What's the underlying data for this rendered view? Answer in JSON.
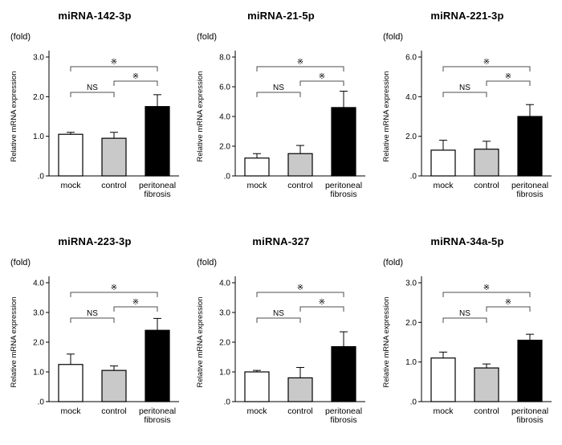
{
  "figure": {
    "type": "multi-panel bar figure",
    "panel_count": 6,
    "colors": {
      "mock_bar": "#ffffff",
      "control_bar": "#c9c9c9",
      "fibrosis_bar": "#000000",
      "bar_border": "#000000",
      "bracket_line": "#4d4d4d",
      "sig_label": "#333333"
    }
  },
  "chart_data": [
    {
      "type": "bar",
      "title": "miRNA-142-3p",
      "unit_label": "(fold)",
      "ylabel": "Relative mRNA expression",
      "categories": [
        "mock",
        "control",
        "peritoneal\nfibrosis"
      ],
      "category_keys": [
        "mock",
        "control",
        "peritoneal-fibrosis"
      ],
      "values": [
        1.05,
        0.95,
        1.75
      ],
      "errors": [
        0.05,
        0.15,
        0.3
      ],
      "ymax": 3.0,
      "yticks": [
        0,
        1,
        2,
        3
      ],
      "ytick_labels": [
        ".0",
        "1.0",
        "2.0",
        "3.0"
      ],
      "bar_colors": [
        "#ffffff",
        "#c9c9c9",
        "#000000"
      ],
      "significance": {
        "mock_vs_fibrosis": "※",
        "mock_vs_control": "NS",
        "control_vs_fibrosis": "※"
      }
    },
    {
      "type": "bar",
      "title": "miRNA-21-5p",
      "unit_label": "(fold)",
      "ylabel": "Relative mRNA expression",
      "categories": [
        "mock",
        "control",
        "peritoneal\nfibrosis"
      ],
      "category_keys": [
        "mock",
        "control",
        "peritoneal-fibrosis"
      ],
      "values": [
        1.2,
        1.5,
        4.6
      ],
      "errors": [
        0.3,
        0.55,
        1.1
      ],
      "ymax": 8.0,
      "yticks": [
        0,
        2,
        4,
        6,
        8
      ],
      "ytick_labels": [
        ".0",
        "2.0",
        "4.0",
        "6.0",
        "8.0"
      ],
      "bar_colors": [
        "#ffffff",
        "#c9c9c9",
        "#000000"
      ],
      "significance": {
        "mock_vs_fibrosis": "※",
        "mock_vs_control": "NS",
        "control_vs_fibrosis": "※"
      }
    },
    {
      "type": "bar",
      "title": "miRNA-221-3p",
      "unit_label": "(fold)",
      "ylabel": "Relative mRNA expression",
      "categories": [
        "mock",
        "control",
        "peritoneal\nfibrosis"
      ],
      "category_keys": [
        "mock",
        "control",
        "peritoneal-fibrosis"
      ],
      "values": [
        1.3,
        1.35,
        3.0
      ],
      "errors": [
        0.5,
        0.4,
        0.6
      ],
      "ymax": 6.0,
      "yticks": [
        0,
        2,
        4,
        6
      ],
      "ytick_labels": [
        ".0",
        "2.0",
        "4.0",
        "6.0"
      ],
      "bar_colors": [
        "#ffffff",
        "#c9c9c9",
        "#000000"
      ],
      "significance": {
        "mock_vs_fibrosis": "※",
        "mock_vs_control": "NS",
        "control_vs_fibrosis": "※"
      }
    },
    {
      "type": "bar",
      "title": "miRNA-223-3p",
      "unit_label": "(fold)",
      "ylabel": "Relative mRNA expression",
      "categories": [
        "mock",
        "control",
        "peritoneal\nfibrosis"
      ],
      "category_keys": [
        "mock",
        "control",
        "peritoneal-fibrosis"
      ],
      "values": [
        1.25,
        1.05,
        2.4
      ],
      "errors": [
        0.35,
        0.15,
        0.4
      ],
      "ymax": 4.0,
      "yticks": [
        0,
        1,
        2,
        3,
        4
      ],
      "ytick_labels": [
        ".0",
        "1.0",
        "2.0",
        "3.0",
        "4.0"
      ],
      "bar_colors": [
        "#ffffff",
        "#c9c9c9",
        "#000000"
      ],
      "significance": {
        "mock_vs_fibrosis": "※",
        "mock_vs_control": "NS",
        "control_vs_fibrosis": "※"
      }
    },
    {
      "type": "bar",
      "title": "miRNA-327",
      "unit_label": "(fold)",
      "ylabel": "Relative mRNA expression",
      "categories": [
        "mock",
        "control",
        "peritoneal\nfibrosis"
      ],
      "category_keys": [
        "mock",
        "control",
        "peritoneal-fibrosis"
      ],
      "values": [
        1.0,
        0.8,
        1.85
      ],
      "errors": [
        0.05,
        0.35,
        0.5
      ],
      "ymax": 4.0,
      "yticks": [
        0,
        1,
        2,
        3,
        4
      ],
      "ytick_labels": [
        ".0",
        "1.0",
        "2.0",
        "3.0",
        "4.0"
      ],
      "bar_colors": [
        "#ffffff",
        "#c9c9c9",
        "#000000"
      ],
      "significance": {
        "mock_vs_fibrosis": "※",
        "mock_vs_control": "NS",
        "control_vs_fibrosis": "※"
      }
    },
    {
      "type": "bar",
      "title": "miRNA-34a-5p",
      "unit_label": "(fold)",
      "ylabel": "Relative mRNA expression",
      "categories": [
        "mock",
        "control",
        "peritoneal\nfibrosis"
      ],
      "category_keys": [
        "mock",
        "control",
        "peritoneal-fibrosis"
      ],
      "values": [
        1.1,
        0.85,
        1.55
      ],
      "errors": [
        0.15,
        0.1,
        0.15
      ],
      "ymax": 3.0,
      "yticks": [
        0,
        1,
        2,
        3
      ],
      "ytick_labels": [
        ".0",
        "1.0",
        "2.0",
        "3.0"
      ],
      "bar_colors": [
        "#ffffff",
        "#c9c9c9",
        "#000000"
      ],
      "significance": {
        "mock_vs_fibrosis": "※",
        "mock_vs_control": "NS",
        "control_vs_fibrosis": "※"
      }
    }
  ]
}
